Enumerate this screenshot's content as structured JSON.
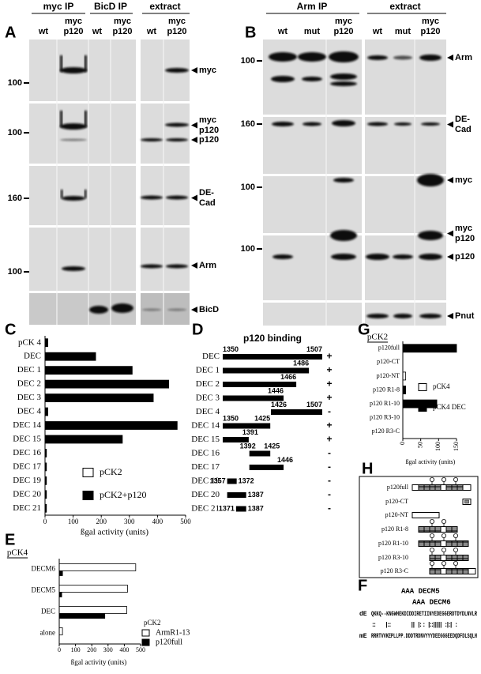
{
  "panel_a": {
    "label": "A",
    "groups": [
      {
        "title": "myc IP",
        "columns": [
          [
            "wt"
          ],
          [
            "myc",
            "p120"
          ]
        ]
      },
      {
        "title": "BicD IP",
        "columns": [
          [
            "wt"
          ],
          [
            "myc",
            "p120"
          ]
        ]
      },
      {
        "title": "extract",
        "columns": [
          [
            "wt"
          ],
          [
            "myc",
            "p120"
          ]
        ]
      }
    ],
    "markers": [
      100,
      100,
      160,
      100
    ],
    "bands": [
      [
        "myc"
      ],
      [
        "myc",
        "p120"
      ],
      [
        "p120"
      ],
      [
        "DE-",
        "Cad"
      ],
      [
        "Arm"
      ],
      [
        "BicD"
      ]
    ]
  },
  "panel_b": {
    "label": "B",
    "groups": [
      {
        "title": "Arm IP",
        "columns": [
          [
            "wt"
          ],
          [
            "mut"
          ],
          [
            "myc",
            "p120"
          ]
        ]
      },
      {
        "title": "extract",
        "columns": [
          [
            "wt"
          ],
          [
            "mut"
          ],
          [
            "myc",
            "p120"
          ]
        ]
      }
    ],
    "markers": [
      100,
      160,
      100,
      100
    ],
    "bands": [
      [
        "Arm"
      ],
      [
        "DE-",
        "Cad"
      ],
      [
        "myc"
      ],
      [
        "myc",
        "p120"
      ],
      [
        "p120"
      ],
      [
        "Pnut"
      ]
    ]
  },
  "chart_data": [
    {
      "type": "bar",
      "panel_label": "C",
      "categories": [
        "pCK 4",
        "DEC",
        "DEC 1",
        "DEC 2",
        "DEC 3",
        "DEC 4",
        "DEC 14",
        "DEC 15",
        "DEC 16",
        "DEC 17",
        "DEC 19",
        "DEC 20",
        "DEC 21"
      ],
      "series": [
        {
          "name": "pCK2",
          "color": "#ffffff",
          "values": [
            0,
            0,
            0,
            0,
            0,
            0,
            0,
            0,
            0,
            0,
            0,
            0,
            0
          ]
        },
        {
          "name": "pCK2+p120",
          "color": "#000000",
          "values": [
            10,
            180,
            310,
            440,
            385,
            10,
            470,
            275,
            5,
            5,
            5,
            5,
            5
          ]
        }
      ],
      "xlim": [
        0,
        500
      ],
      "xticks": [
        0,
        100,
        200,
        300,
        400,
        500
      ],
      "xlabel": "ßgal activity (units)"
    },
    {
      "type": "bar",
      "panel_label": "E",
      "category_header": "pCK4",
      "categories": [
        "DECM6",
        "DECM5",
        "DEC",
        "alone"
      ],
      "legend_title": "pCK2",
      "series": [
        {
          "name": "ArmR1-13",
          "color": "#ffffff",
          "values": [
            470,
            420,
            415,
            20
          ]
        },
        {
          "name": "p120full",
          "color": "#000000",
          "values": [
            20,
            15,
            280,
            0
          ]
        }
      ],
      "xlim": [
        0,
        500
      ],
      "xticks": [
        0,
        100,
        200,
        300,
        400,
        500
      ],
      "xlabel": "ßgal activity (units)"
    },
    {
      "type": "bar",
      "panel_label": "G",
      "category_header": "pCK2",
      "categories": [
        "p120full",
        "p120-CT",
        "p120-NT",
        "p120 R1-8",
        "p120 R1-10",
        "p120 R3-10",
        "p120 R3-C"
      ],
      "series": [
        {
          "name": "pCK4",
          "color": "#ffffff",
          "values": [
            0,
            0,
            8,
            0,
            0,
            0,
            0
          ]
        },
        {
          "name": "pCK4 DEC",
          "color": "#000000",
          "values": [
            150,
            0,
            0,
            8,
            95,
            0,
            0
          ]
        }
      ],
      "xlim": [
        0,
        150
      ],
      "xticks": [
        0,
        50,
        100,
        150
      ],
      "xlabel": "ßgal activity (units)"
    }
  ],
  "panel_d": {
    "label": "D",
    "title": "p120 binding",
    "rows": [
      {
        "name": "DEC",
        "start": 1350,
        "end": 1507,
        "print_start": true,
        "binding": "+"
      },
      {
        "name": "DEC 1",
        "start": 1350,
        "end": 1486,
        "print_start": false,
        "binding": "+"
      },
      {
        "name": "DEC 2",
        "start": 1350,
        "end": 1466,
        "print_start": false,
        "binding": "+"
      },
      {
        "name": "DEC 3",
        "start": 1350,
        "end": 1446,
        "print_start": false,
        "binding": "+"
      },
      {
        "name": "DEC 4",
        "start": 1426,
        "end": 1507,
        "print_start": true,
        "binding": "-"
      },
      {
        "name": "DEC 14",
        "start": 1350,
        "end": 1425,
        "print_start": true,
        "binding": "+"
      },
      {
        "name": "DEC 15",
        "start": 1350,
        "end": 1391,
        "print_start": false,
        "binding": "+"
      },
      {
        "name": "DEC 16",
        "start": 1392,
        "end": 1425,
        "print_start": true,
        "binding": "-"
      },
      {
        "name": "DEC 17",
        "start": 1392,
        "end": 1446,
        "print_start": false,
        "binding": "-"
      },
      {
        "name": "DEC 19",
        "start": 1357,
        "end": 1372,
        "print_start": true,
        "binding": "-"
      },
      {
        "name": "DEC 20",
        "start": 1357,
        "end": 1387,
        "print_start": false,
        "binding": "-"
      },
      {
        "name": "DEC 21",
        "start": 1371,
        "end": 1387,
        "print_start": true,
        "binding": "-"
      }
    ]
  },
  "panel_f": {
    "label": "F",
    "annotations": [
      "AAA DECM5",
      "AAA DECM6"
    ],
    "rows": [
      {
        "species": "dE",
        "sequence": "QKKQ--KNGWHEKDIDDIRETIINYEDEGGERDTDYDLNVLR"
      },
      {
        "match": "::      |::            ||  |: :  |::|||||  :|:|  :"
      },
      {
        "species": "mE",
        "sequence": "RRRTVVKEPLLPP.DDDTRDNVYYYDEEGGGEEDQDFDLSQLH"
      }
    ]
  },
  "panel_h": {
    "label": "H",
    "constructs": [
      "p120full",
      "p120-CT",
      "p120-NT",
      "p120 R1-8",
      "p120 R1-10",
      "p120 R3-10",
      "p120 R3-C"
    ]
  }
}
